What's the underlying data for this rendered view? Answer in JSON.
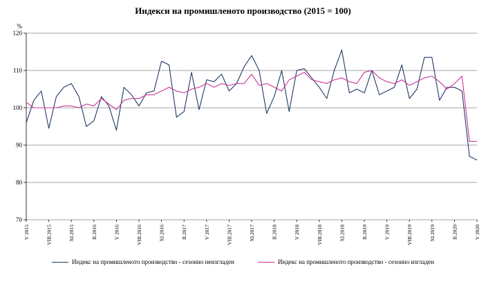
{
  "title": "Индекси на промишленото производство (2015 = 100)",
  "y_axis_unit": "%",
  "colors": {
    "unadjusted": "#1F3864",
    "adjusted": "#CC3399",
    "grid": "#4d4d4d"
  },
  "legend": [
    {
      "label": "Индекс на промишленото производство - сезонно  неизгладен",
      "color": "#1F3864"
    },
    {
      "label": "Индекс на промишленото производство - сезонно изгладен",
      "color": "#CC3399"
    }
  ],
  "chart_data": {
    "type": "line",
    "title": "Индекси на промишленото производство (2015 = 100)",
    "xlabel": "",
    "ylabel": "%",
    "ylim": [
      70,
      120
    ],
    "yticks": [
      70,
      80,
      90,
      100,
      110,
      120
    ],
    "grid": true,
    "legend_position": "bottom",
    "x_count": 61,
    "x_tick_every": 3,
    "x_tick_labels": [
      "V 2015",
      "VIII.2015",
      "XI.2015",
      "II.2016",
      "V 2016",
      "VIII.2016",
      "XI.2016",
      "II.2017",
      "V 2017",
      "VIII.2017",
      "XI.2017",
      "II.2018",
      "V 2018",
      "VIII.2018",
      "XI.2018",
      "II.2019",
      "V 2019",
      "VIII.2019",
      "XI.2019",
      "II.2020",
      "V 2020"
    ],
    "series": [
      {
        "name": "Индекс на промишленото производство - сезонно  неизгладен",
        "color": "#1F3864",
        "values": [
          96,
          102,
          104.5,
          94.5,
          103,
          105.5,
          106.5,
          103,
          95,
          96.5,
          103,
          100.5,
          94,
          105.5,
          103.5,
          100.5,
          104,
          104.5,
          112.5,
          111.5,
          97.5,
          99,
          109.5,
          99.5,
          107.5,
          107,
          109,
          104.5,
          106.5,
          111,
          114,
          110,
          98.5,
          103,
          110,
          99,
          110,
          110.5,
          108,
          105.5,
          102.5,
          110,
          115.5,
          104,
          105,
          104,
          110,
          103.5,
          104.5,
          105.5,
          111.5,
          102.5,
          105,
          113.5,
          113.5,
          102,
          105.5,
          105.5,
          104.5,
          87,
          86
        ]
      },
      {
        "name": "Индекс на промишленото производство - сезонно изгладен",
        "color": "#CC3399",
        "values": [
          101.5,
          100,
          100,
          100,
          100,
          100.5,
          100.5,
          100,
          101,
          100.5,
          102.5,
          101,
          99.5,
          102,
          102.5,
          102.5,
          103.5,
          103.5,
          104.5,
          105.5,
          104.5,
          104,
          105,
          105.5,
          106.5,
          105.5,
          106.5,
          106,
          106.5,
          106.5,
          109,
          106,
          106.5,
          105.5,
          104.5,
          107.5,
          108.5,
          109.5,
          107.5,
          107,
          106.5,
          107.5,
          108,
          107,
          106.5,
          109.5,
          110,
          108,
          107,
          106.5,
          107.5,
          106,
          107,
          108,
          108.5,
          107,
          105,
          106.5,
          108.5,
          91,
          91
        ]
      }
    ]
  }
}
